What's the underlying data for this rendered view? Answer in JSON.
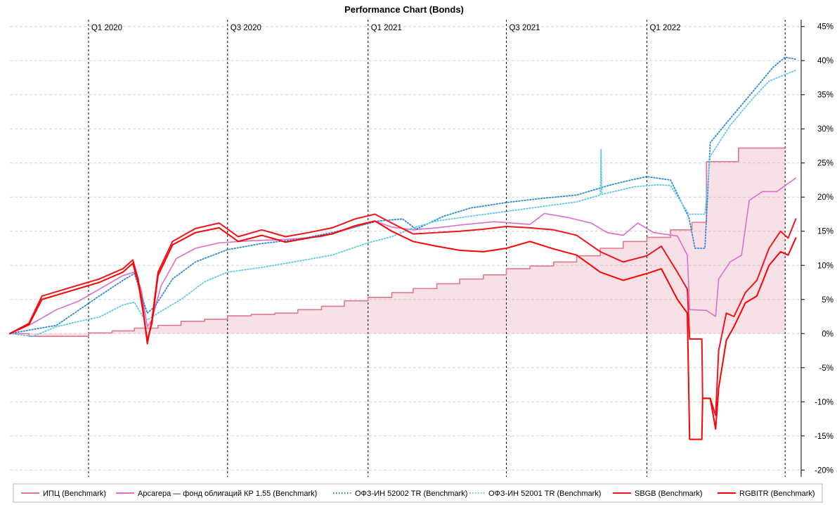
{
  "chart_data": {
    "type": "line",
    "title": "Performance Chart (Bonds)",
    "xlabel": "",
    "ylabel": "",
    "x_range": [
      "2019-09-20",
      "2022-07-22"
    ],
    "ylim": [
      -21,
      46
    ],
    "y_ticks": [
      -20,
      -15,
      -10,
      -5,
      0,
      5,
      10,
      15,
      20,
      25,
      30,
      35,
      40,
      45
    ],
    "y_tick_labels": [
      "-20%",
      "-15%",
      "-10%",
      "-5%",
      "0%",
      "5%",
      "10%",
      "15%",
      "20%",
      "25%",
      "30%",
      "35%",
      "40%",
      "45%"
    ],
    "grid": true,
    "y_axis_side": "right",
    "quarter_markers": [
      {
        "date": "2020-01-01",
        "label": "Q1 2020"
      },
      {
        "date": "2020-07-01",
        "label": "Q3 2020"
      },
      {
        "date": "2021-01-01",
        "label": "Q1 2021"
      },
      {
        "date": "2021-07-01",
        "label": "Q3 2021"
      },
      {
        "date": "2022-01-01",
        "label": "Q1 2022"
      },
      {
        "date": "2022-07-01",
        "label": ""
      }
    ],
    "legend_position": "bottom",
    "series": [
      {
        "name": "ИПЦ (Benchmark)",
        "color": "#e0788f",
        "style": "step-area",
        "points": [
          [
            "2019-09-20",
            0
          ],
          [
            "2019-10-15",
            -0.4
          ],
          [
            "2019-12-15",
            -0.4
          ],
          [
            "2020-01-01",
            0.1
          ],
          [
            "2020-02-01",
            0.4
          ],
          [
            "2020-03-01",
            0.8
          ],
          [
            "2020-04-01",
            1.2
          ],
          [
            "2020-05-01",
            1.8
          ],
          [
            "2020-06-01",
            2.1
          ],
          [
            "2020-07-01",
            2.6
          ],
          [
            "2020-08-01",
            2.8
          ],
          [
            "2020-09-01",
            3.0
          ],
          [
            "2020-10-01",
            3.5
          ],
          [
            "2020-11-01",
            4.0
          ],
          [
            "2020-12-01",
            4.8
          ],
          [
            "2021-01-01",
            5.3
          ],
          [
            "2021-02-01",
            6.0
          ],
          [
            "2021-03-01",
            6.6
          ],
          [
            "2021-04-01",
            7.3
          ],
          [
            "2021-05-01",
            8.0
          ],
          [
            "2021-06-01",
            8.6
          ],
          [
            "2021-07-01",
            9.5
          ],
          [
            "2021-08-01",
            9.9
          ],
          [
            "2021-09-01",
            10.5
          ],
          [
            "2021-10-01",
            11.4
          ],
          [
            "2021-11-01",
            12.5
          ],
          [
            "2021-12-01",
            13.5
          ],
          [
            "2022-01-01",
            14.1
          ],
          [
            "2022-02-01",
            15.2
          ],
          [
            "2022-03-01",
            16.3
          ],
          [
            "2022-03-20",
            25.2
          ],
          [
            "2022-05-01",
            27.2
          ],
          [
            "2022-07-01",
            27.1
          ]
        ]
      },
      {
        "name": "Арсагера — фонд облигаций КР 1.55 (Benchmark)",
        "color": "#dd6ccc",
        "style": "solid",
        "points": [
          [
            "2019-09-20",
            0
          ],
          [
            "2019-10-20",
            1.5
          ],
          [
            "2019-11-20",
            3.5
          ],
          [
            "2019-12-20",
            4.8
          ],
          [
            "2020-01-15",
            6.5
          ],
          [
            "2020-02-15",
            8.5
          ],
          [
            "2020-03-01",
            9.0
          ],
          [
            "2020-03-10",
            6.5
          ],
          [
            "2020-03-18",
            1.0
          ],
          [
            "2020-03-24",
            2.0
          ],
          [
            "2020-04-05",
            7.0
          ],
          [
            "2020-04-25",
            11.0
          ],
          [
            "2020-05-20",
            12.5
          ],
          [
            "2020-06-20",
            13.3
          ],
          [
            "2020-08-01",
            13.6
          ],
          [
            "2020-09-15",
            13.8
          ],
          [
            "2020-11-01",
            14.2
          ],
          [
            "2020-12-15",
            15.6
          ],
          [
            "2021-01-10",
            16.5
          ],
          [
            "2021-02-01",
            15.6
          ],
          [
            "2021-03-01",
            15.2
          ],
          [
            "2021-04-01",
            15.5
          ],
          [
            "2021-05-01",
            15.9
          ],
          [
            "2021-06-15",
            16.4
          ],
          [
            "2021-08-01",
            16.0
          ],
          [
            "2021-08-20",
            17.6
          ],
          [
            "2021-09-20",
            17.0
          ],
          [
            "2021-10-20",
            16.2
          ],
          [
            "2021-11-10",
            14.8
          ],
          [
            "2021-12-01",
            14.4
          ],
          [
            "2021-12-20",
            16.2
          ],
          [
            "2022-01-10",
            14.8
          ],
          [
            "2022-02-10",
            14.3
          ],
          [
            "2022-02-23",
            11.5
          ],
          [
            "2022-02-26",
            3.5
          ],
          [
            "2022-03-20",
            3.4
          ],
          [
            "2022-04-01",
            2.5
          ],
          [
            "2022-04-05",
            8.0
          ],
          [
            "2022-04-20",
            10.5
          ],
          [
            "2022-05-05",
            11.5
          ],
          [
            "2022-05-15",
            19.5
          ],
          [
            "2022-06-01",
            20.8
          ],
          [
            "2022-06-20",
            20.8
          ],
          [
            "2022-07-15",
            22.8
          ]
        ]
      },
      {
        "name": "ОФЗ-ИН 52002 TR (Benchmark)",
        "color": "#2a87d6",
        "style": "dotted",
        "points": [
          [
            "2019-09-20",
            0
          ],
          [
            "2019-10-20",
            0.6
          ],
          [
            "2019-11-20",
            1.2
          ],
          [
            "2019-12-20",
            3.5
          ],
          [
            "2020-01-15",
            5.5
          ],
          [
            "2020-02-15",
            7.8
          ],
          [
            "2020-03-01",
            8.8
          ],
          [
            "2020-03-12",
            5.0
          ],
          [
            "2020-03-18",
            3.0
          ],
          [
            "2020-03-28",
            4.0
          ],
          [
            "2020-04-20",
            8.0
          ],
          [
            "2020-05-20",
            10.5
          ],
          [
            "2020-07-01",
            12.3
          ],
          [
            "2020-08-15",
            13.2
          ],
          [
            "2020-10-01",
            13.8
          ],
          [
            "2020-11-15",
            14.8
          ],
          [
            "2021-01-15",
            16.5
          ],
          [
            "2021-02-15",
            16.8
          ],
          [
            "2021-03-05",
            15.3
          ],
          [
            "2021-04-10",
            17.2
          ],
          [
            "2021-05-15",
            18.4
          ],
          [
            "2021-07-01",
            19.2
          ],
          [
            "2021-08-15",
            19.8
          ],
          [
            "2021-10-01",
            20.3
          ],
          [
            "2021-11-15",
            21.8
          ],
          [
            "2021-12-15",
            22.6
          ],
          [
            "2022-01-01",
            23.0
          ],
          [
            "2022-02-01",
            22.5
          ],
          [
            "2022-02-25",
            17.0
          ],
          [
            "2022-03-05",
            12.5
          ],
          [
            "2022-03-18",
            12.5
          ],
          [
            "2022-03-25",
            28.0
          ],
          [
            "2022-04-20",
            31.5
          ],
          [
            "2022-05-20",
            35.5
          ],
          [
            "2022-06-15",
            39.0
          ],
          [
            "2022-07-01",
            40.5
          ],
          [
            "2022-07-15",
            40.2
          ]
        ]
      },
      {
        "name": "ОФЗ-ИН 52001 TR (Benchmark)",
        "color": "#5cc8e6",
        "style": "dotted",
        "points": [
          [
            "2019-09-20",
            0
          ],
          [
            "2019-10-20",
            -0.4
          ],
          [
            "2019-11-20",
            1.0
          ],
          [
            "2019-12-20",
            1.8
          ],
          [
            "2020-01-15",
            2.4
          ],
          [
            "2020-02-15",
            4.2
          ],
          [
            "2020-03-01",
            4.6
          ],
          [
            "2020-03-12",
            2.5
          ],
          [
            "2020-03-18",
            2.0
          ],
          [
            "2020-04-01",
            3.0
          ],
          [
            "2020-05-01",
            5.0
          ],
          [
            "2020-06-01",
            7.6
          ],
          [
            "2020-07-01",
            9.0
          ],
          [
            "2020-08-15",
            9.7
          ],
          [
            "2020-10-01",
            10.6
          ],
          [
            "2020-11-15",
            11.5
          ],
          [
            "2021-01-01",
            13.3
          ],
          [
            "2021-02-01",
            14.2
          ],
          [
            "2021-03-01",
            15.5
          ],
          [
            "2021-04-01",
            16.5
          ],
          [
            "2021-05-15",
            17.2
          ],
          [
            "2021-07-01",
            17.9
          ],
          [
            "2021-08-15",
            18.6
          ],
          [
            "2021-10-01",
            19.3
          ],
          [
            "2021-11-01",
            20.3
          ],
          [
            "2021-11-02",
            27.0
          ],
          [
            "2021-11-03",
            20.4
          ],
          [
            "2021-12-15",
            21.5
          ],
          [
            "2022-01-15",
            21.8
          ],
          [
            "2022-02-01",
            21.7
          ],
          [
            "2022-02-25",
            17.5
          ],
          [
            "2022-03-18",
            17.5
          ],
          [
            "2022-03-25",
            26.0
          ],
          [
            "2022-04-20",
            30.5
          ],
          [
            "2022-05-20",
            34.5
          ],
          [
            "2022-06-10",
            37.0
          ],
          [
            "2022-07-15",
            38.6
          ]
        ]
      },
      {
        "name": "SBGB (Benchmark)",
        "color": "#f0141e",
        "style": "solid",
        "points": [
          [
            "2019-09-20",
            0
          ],
          [
            "2019-10-15",
            1.5
          ],
          [
            "2019-11-01",
            5.5
          ],
          [
            "2019-12-01",
            6.5
          ],
          [
            "2020-01-15",
            8.0
          ],
          [
            "2020-02-15",
            9.5
          ],
          [
            "2020-02-28",
            10.8
          ],
          [
            "2020-03-06",
            8.0
          ],
          [
            "2020-03-12",
            4.0
          ],
          [
            "2020-03-18",
            -1.5
          ],
          [
            "2020-03-24",
            2.0
          ],
          [
            "2020-04-01",
            9.0
          ],
          [
            "2020-04-20",
            13.5
          ],
          [
            "2020-05-20",
            15.4
          ],
          [
            "2020-06-20",
            16.2
          ],
          [
            "2020-07-15",
            14.2
          ],
          [
            "2020-08-15",
            15.2
          ],
          [
            "2020-09-15",
            14.2
          ],
          [
            "2020-10-15",
            14.8
          ],
          [
            "2020-11-15",
            15.5
          ],
          [
            "2020-12-15",
            16.8
          ],
          [
            "2021-01-10",
            17.5
          ],
          [
            "2021-02-01",
            16.2
          ],
          [
            "2021-03-01",
            14.6
          ],
          [
            "2021-04-01",
            14.8
          ],
          [
            "2021-05-01",
            15.0
          ],
          [
            "2021-06-01",
            15.3
          ],
          [
            "2021-07-01",
            15.7
          ],
          [
            "2021-08-01",
            15.5
          ],
          [
            "2021-09-01",
            15.2
          ],
          [
            "2021-10-01",
            14.4
          ],
          [
            "2021-11-01",
            12.0
          ],
          [
            "2021-12-01",
            10.5
          ],
          [
            "2022-01-01",
            11.4
          ],
          [
            "2022-01-20",
            12.8
          ],
          [
            "2022-02-10",
            9.0
          ],
          [
            "2022-02-23",
            6.5
          ],
          [
            "2022-02-26",
            -0.8
          ],
          [
            "2022-03-14",
            -0.8
          ],
          [
            "2022-03-15",
            -9.5
          ],
          [
            "2022-03-25",
            -9.5
          ],
          [
            "2022-04-01",
            -12.0
          ],
          [
            "2022-04-05",
            -2.5
          ],
          [
            "2022-04-15",
            3.0
          ],
          [
            "2022-04-25",
            2.5
          ],
          [
            "2022-05-10",
            6.0
          ],
          [
            "2022-05-25",
            7.8
          ],
          [
            "2022-06-10",
            12.5
          ],
          [
            "2022-06-25",
            15.0
          ],
          [
            "2022-07-05",
            14.0
          ],
          [
            "2022-07-15",
            16.8
          ]
        ]
      },
      {
        "name": "RGBITR (Benchmark)",
        "color": "#ff0000",
        "style": "solid",
        "points": [
          [
            "2019-09-20",
            0
          ],
          [
            "2019-10-15",
            1.3
          ],
          [
            "2019-11-01",
            5.0
          ],
          [
            "2019-12-01",
            6.0
          ],
          [
            "2020-01-15",
            7.5
          ],
          [
            "2020-02-15",
            9.0
          ],
          [
            "2020-02-28",
            10.3
          ],
          [
            "2020-03-06",
            7.5
          ],
          [
            "2020-03-12",
            3.5
          ],
          [
            "2020-03-18",
            -1.0
          ],
          [
            "2020-03-24",
            1.5
          ],
          [
            "2020-04-01",
            8.5
          ],
          [
            "2020-04-20",
            13.0
          ],
          [
            "2020-05-20",
            14.8
          ],
          [
            "2020-06-20",
            15.5
          ],
          [
            "2020-07-15",
            13.5
          ],
          [
            "2020-08-15",
            14.4
          ],
          [
            "2020-09-15",
            13.4
          ],
          [
            "2020-10-15",
            14.0
          ],
          [
            "2020-11-15",
            14.6
          ],
          [
            "2020-12-15",
            15.8
          ],
          [
            "2021-01-10",
            16.5
          ],
          [
            "2021-02-01",
            15.0
          ],
          [
            "2021-03-01",
            13.5
          ],
          [
            "2021-04-01",
            12.8
          ],
          [
            "2021-05-01",
            12.2
          ],
          [
            "2021-06-01",
            12.0
          ],
          [
            "2021-07-01",
            12.5
          ],
          [
            "2021-08-01",
            13.5
          ],
          [
            "2021-09-01",
            12.4
          ],
          [
            "2021-10-01",
            11.5
          ],
          [
            "2021-11-01",
            9.0
          ],
          [
            "2021-12-01",
            7.8
          ],
          [
            "2022-01-01",
            8.8
          ],
          [
            "2022-01-20",
            9.5
          ],
          [
            "2022-02-10",
            5.0
          ],
          [
            "2022-02-23",
            3.0
          ],
          [
            "2022-02-26",
            -15.5
          ],
          [
            "2022-03-14",
            -15.5
          ],
          [
            "2022-03-15",
            -9.5
          ],
          [
            "2022-03-25",
            -9.5
          ],
          [
            "2022-04-01",
            -14.0
          ],
          [
            "2022-04-05",
            -8.0
          ],
          [
            "2022-04-15",
            -1.0
          ],
          [
            "2022-04-25",
            1.0
          ],
          [
            "2022-05-10",
            4.5
          ],
          [
            "2022-05-25",
            5.5
          ],
          [
            "2022-06-10",
            10.0
          ],
          [
            "2022-06-25",
            12.0
          ],
          [
            "2022-07-05",
            11.5
          ],
          [
            "2022-07-15",
            14.0
          ]
        ]
      }
    ]
  }
}
